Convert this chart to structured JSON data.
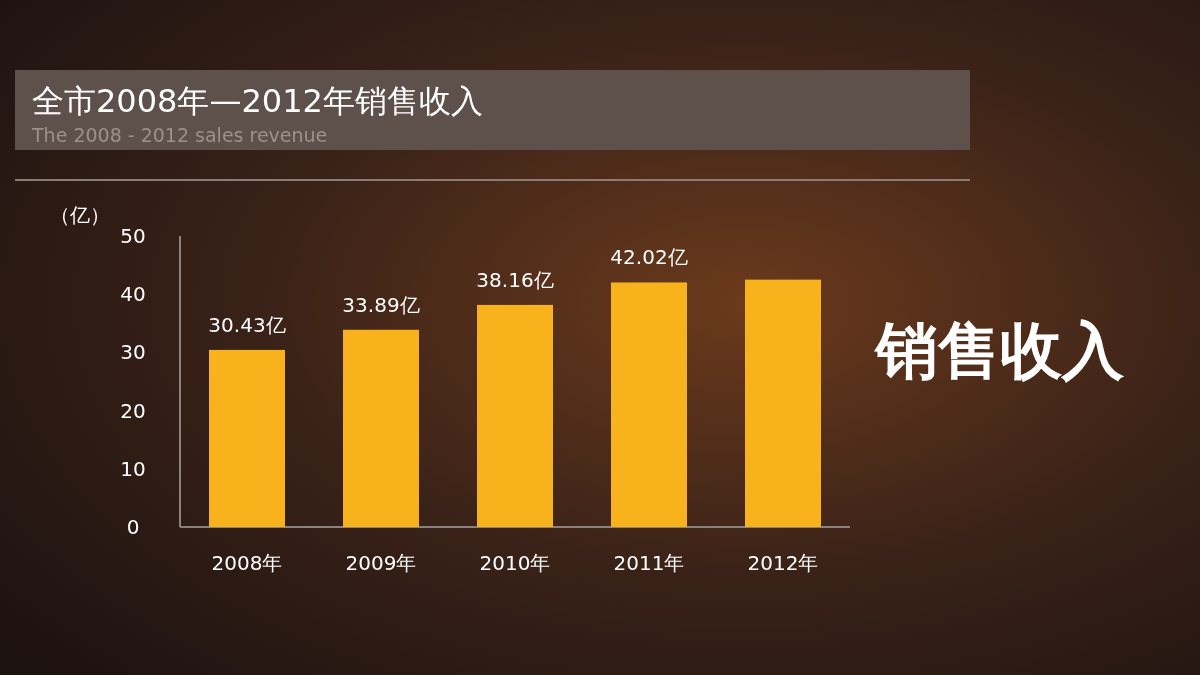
{
  "chart_data": {
    "type": "bar",
    "title": "全市2008年—2012年销售收入",
    "subtitle": "The 2008 - 2012 sales revenue",
    "ylabel": "（亿）",
    "categories": [
      "2008年",
      "2009年",
      "2010年",
      "2011年",
      "2012年"
    ],
    "values": [
      30.43,
      33.89,
      38.16,
      42.02,
      42.5
    ],
    "value_labels": [
      "30.43亿",
      "33.89亿",
      "38.16亿",
      "42.02亿",
      null
    ],
    "color": "#f7b21c",
    "ylim": [
      0,
      50
    ],
    "yticks": [
      0,
      10,
      20,
      30,
      40,
      50
    ],
    "annotations": [
      "销售收入"
    ]
  }
}
